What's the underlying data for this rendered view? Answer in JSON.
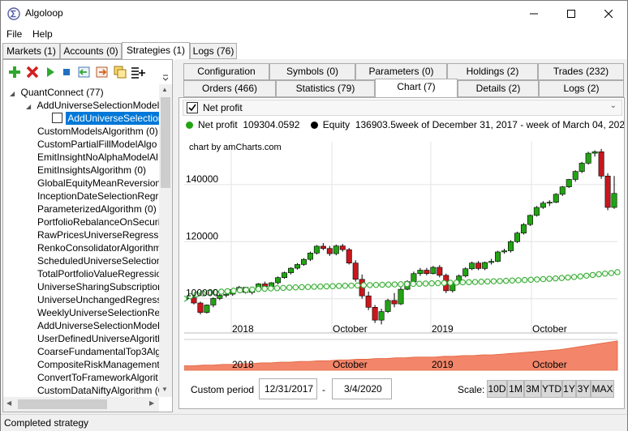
{
  "window": {
    "title": "Algoloop",
    "minimize": "—",
    "maximize": "☐",
    "close": "✕"
  },
  "menu": [
    "File",
    "Help"
  ],
  "main_tabs": [
    "Markets (1)",
    "Accounts (0)",
    "Strategies (1)",
    "Logs (76)"
  ],
  "tree": {
    "root": "QuantConnect (77)",
    "group": "AddUniverseSelectionModel",
    "selected": "AddUniverseSelection",
    "items": [
      "CustomModelsAlgorithm (0)",
      "CustomPartialFillModelAlgo",
      "EmitInsightNoAlphaModelAl",
      "EmitInsightsAlgorithm (0)",
      "GlobalEquityMeanReversion",
      "InceptionDateSelectionRegr",
      "ParameterizedAlgorithm (0)",
      "PortfolioRebalanceOnSecuri",
      "RawPricesUniverseRegressio",
      "RenkoConsolidatorAlgorithm",
      "ScheduledUniverseSelection",
      "TotalPortfolioValueRegressio",
      "UniverseSharingSubscription",
      "UniverseUnchangedRegressi",
      "WeeklyUniverseSelectionReg",
      "AddUniverseSelectionModel",
      "UserDefinedUniverseAlgorith",
      "CoarseFundamentalTop3Alg",
      "CompositeRiskManagement",
      "ConvertToFrameworkAlgorit",
      "CustomDataNiftyAlgorithm (0"
    ]
  },
  "sub_tabs_row1": [
    "Configuration",
    "Symbols (0)",
    "Parameters (0)",
    "Holdings (2)",
    "Trades (232)"
  ],
  "sub_tabs_row2": [
    "Orders (466)",
    "Statistics (79)",
    "Chart (7)",
    "Details (2)",
    "Logs (2)"
  ],
  "chart_panel": {
    "series_select": "Net profit",
    "legend_net_profit": "Net profit",
    "legend_net_profit_value": "109304.0592",
    "legend_equity": "Equity",
    "legend_equity_value": "136903.5",
    "legend_range": "week of December 31, 2017 - week of March 04, 2020",
    "credit": "chart by amCharts.com",
    "custom_period_label": "Custom period",
    "period_from": "12/31/2017",
    "period_sep": "-",
    "period_to": "3/4/2020",
    "scale_label": "Scale:",
    "scale_buttons": [
      "10D",
      "1M",
      "3M",
      "YTD",
      "1Y",
      "3Y",
      "MAX"
    ]
  },
  "status": "Completed strategy",
  "colors": {
    "up": "#23a314",
    "down": "#c8171d",
    "line": "#2fa82f",
    "navigator": "#f3866a",
    "selection": "#0078d7"
  },
  "chart_data": {
    "type": "candlestick",
    "title": "",
    "y_ticks": [
      100000,
      120000,
      140000
    ],
    "ylim": [
      88000,
      155000
    ],
    "x_ticks": [
      "2018",
      "October",
      "2019",
      "October"
    ],
    "navigator_labels": [
      "2018",
      "October",
      "2019",
      "October"
    ],
    "series": [
      {
        "name": "Equity",
        "type": "candlestick",
        "ohlc": [
          [
            100000,
            101000,
            99500,
            100300
          ],
          [
            100300,
            101000,
            98000,
            98500
          ],
          [
            98500,
            99000,
            94500,
            95200
          ],
          [
            95200,
            98000,
            94800,
            97800
          ],
          [
            97800,
            100500,
            97000,
            100100
          ],
          [
            100100,
            101800,
            99500,
            101200
          ],
          [
            101200,
            102000,
            100500,
            101600
          ],
          [
            101600,
            103500,
            101000,
            103200
          ],
          [
            103200,
            104500,
            102500,
            104000
          ],
          [
            104000,
            104200,
            101800,
            102200
          ],
          [
            102200,
            103800,
            101500,
            103500
          ],
          [
            103500,
            105500,
            103000,
            105200
          ],
          [
            105200,
            106000,
            103800,
            104300
          ],
          [
            104300,
            105800,
            104000,
            105600
          ],
          [
            105600,
            107800,
            105000,
            107400
          ],
          [
            107400,
            109500,
            107000,
            109100
          ],
          [
            109100,
            111000,
            108500,
            110700
          ],
          [
            110700,
            112500,
            110200,
            112000
          ],
          [
            112000,
            114200,
            111500,
            113800
          ],
          [
            113800,
            116500,
            113200,
            116000
          ],
          [
            116000,
            118800,
            115500,
            118400
          ],
          [
            118400,
            119500,
            117000,
            117600
          ],
          [
            117600,
            118500,
            115000,
            115800
          ],
          [
            115800,
            119000,
            115200,
            118500
          ],
          [
            118500,
            119200,
            116500,
            117200
          ],
          [
            117200,
            117800,
            112000,
            112500
          ],
          [
            112500,
            113500,
            106000,
            106800
          ],
          [
            106800,
            108500,
            100000,
            101000
          ],
          [
            101000,
            102500,
            96000,
            97000
          ],
          [
            97000,
            97800,
            91500,
            92500
          ],
          [
            92500,
            96500,
            91000,
            95500
          ],
          [
            95500,
            100000,
            95000,
            99400
          ],
          [
            99400,
            102000,
            97000,
            98200
          ],
          [
            98200,
            104000,
            97800,
            103300
          ],
          [
            103300,
            106500,
            103000,
            106000
          ],
          [
            106000,
            109500,
            105500,
            108800
          ],
          [
            108800,
            110800,
            108000,
            110000
          ],
          [
            110000,
            110800,
            108200,
            108800
          ],
          [
            108800,
            111500,
            108500,
            111000
          ],
          [
            111000,
            111800,
            107500,
            108200
          ],
          [
            108200,
            108800,
            102000,
            102800
          ],
          [
            102800,
            106000,
            102200,
            105600
          ],
          [
            105600,
            108500,
            105000,
            108000
          ],
          [
            108000,
            111000,
            107500,
            110500
          ],
          [
            110500,
            113000,
            110000,
            112500
          ],
          [
            112500,
            113200,
            110000,
            110600
          ],
          [
            110600,
            113000,
            110000,
            112700
          ],
          [
            112700,
            114000,
            112000,
            113100
          ],
          [
            113100,
            116800,
            112800,
            116400
          ],
          [
            116400,
            117500,
            115800,
            116800
          ],
          [
            116800,
            120500,
            116200,
            120000
          ],
          [
            120000,
            123500,
            119500,
            123000
          ],
          [
            123000,
            126500,
            122500,
            126000
          ],
          [
            126000,
            129500,
            125500,
            129200
          ],
          [
            129200,
            132500,
            128800,
            132000
          ],
          [
            132000,
            134200,
            131500,
            133500
          ],
          [
            133500,
            134500,
            132500,
            133800
          ],
          [
            133800,
            137000,
            133500,
            136600
          ],
          [
            136600,
            139500,
            136000,
            139200
          ],
          [
            139200,
            142000,
            138800,
            141800
          ],
          [
            141800,
            145000,
            141000,
            144600
          ],
          [
            144600,
            148000,
            144000,
            147500
          ],
          [
            147500,
            151500,
            147000,
            151000
          ],
          [
            151000,
            152000,
            149800,
            151500
          ],
          [
            151500,
            152500,
            142000,
            143000
          ],
          [
            143000,
            144000,
            131000,
            132000
          ],
          [
            132000,
            143000,
            131500,
            136900
          ]
        ]
      },
      {
        "name": "Net profit",
        "type": "line",
        "values": [
          100000,
          100900,
          101500,
          101900,
          102150,
          102350,
          102500,
          102650,
          102800,
          102950,
          103100,
          103250,
          103400,
          103500,
          103600,
          103700,
          103800,
          103900,
          103980,
          104050,
          104120,
          104190,
          104260,
          104330,
          104400,
          104470,
          104540,
          104600,
          104660,
          104720,
          104780,
          104840,
          104900,
          104960,
          105020,
          105080,
          105140,
          105200,
          105260,
          105320,
          105390,
          105460,
          105530,
          105600,
          105670,
          105740,
          105810,
          105880,
          105960,
          106040,
          106120,
          106200,
          106290,
          106380,
          106470,
          106560,
          106660,
          106760,
          106870,
          106990,
          107120,
          107270,
          107440,
          107630,
          107840,
          108080,
          108330,
          108580,
          108810,
          109000,
          109304
        ]
      }
    ],
    "navigator": {
      "type": "area",
      "values": [
        6,
        6,
        7,
        7,
        8,
        8,
        9,
        9,
        10,
        10,
        11,
        11,
        12,
        12,
        13,
        13,
        14,
        14,
        15,
        15,
        16,
        16,
        17,
        17,
        18,
        18,
        18,
        19,
        19,
        20,
        20,
        21,
        21,
        22,
        23,
        24,
        25,
        26,
        27,
        28,
        30,
        32,
        34,
        36,
        38,
        40
      ]
    }
  }
}
